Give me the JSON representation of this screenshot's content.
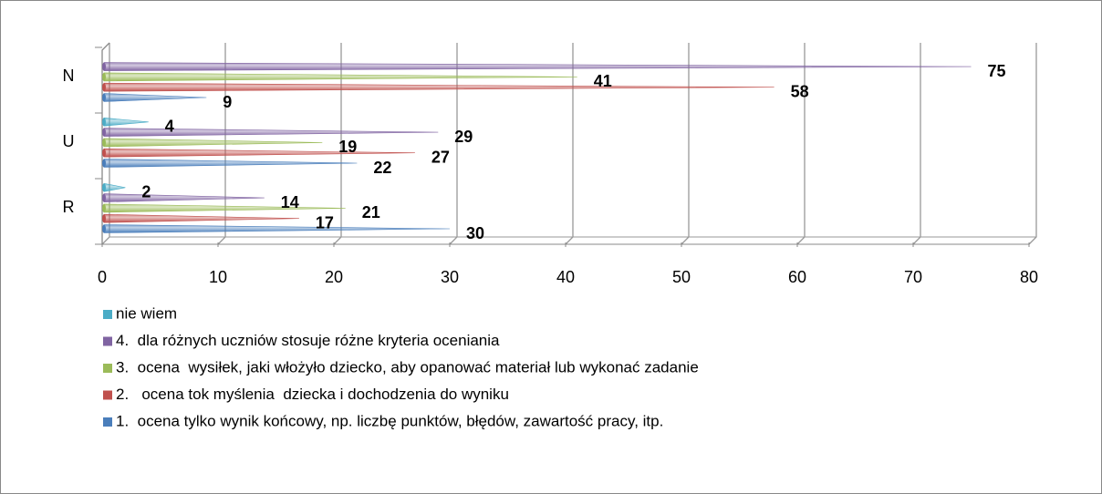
{
  "chart_data": {
    "type": "bar",
    "orientation": "horizontal",
    "categories": [
      "R",
      "U",
      "N"
    ],
    "series": [
      {
        "name": "1.  ocena tylko wynik końcowy, np. liczbę punktów, błędów, zawartość pracy, itp.",
        "color": "#4a7ebb",
        "values": [
          30,
          22,
          9
        ]
      },
      {
        "name": "2.   ocena tok myślenia  dziecka i dochodzenia do wyniku",
        "color": "#c0504d",
        "values": [
          17,
          27,
          58
        ]
      },
      {
        "name": "3.  ocena  wysiłek, jaki włożyło dziecko, aby opanować materiał lub wykonać zadanie",
        "color": "#9bbb59",
        "values": [
          21,
          19,
          41
        ]
      },
      {
        "name": "4.  dla różnych uczniów stosuje różne kryteria oceniania",
        "color": "#8064a2",
        "values": [
          14,
          29,
          75
        ]
      },
      {
        "name": "nie wiem",
        "color": "#4bacc6",
        "values": [
          2,
          4,
          null
        ]
      }
    ],
    "xlim": [
      0,
      80
    ],
    "xticks": [
      0,
      10,
      20,
      30,
      40,
      50,
      60,
      70,
      80
    ],
    "grid": true,
    "legend": "bottom"
  }
}
